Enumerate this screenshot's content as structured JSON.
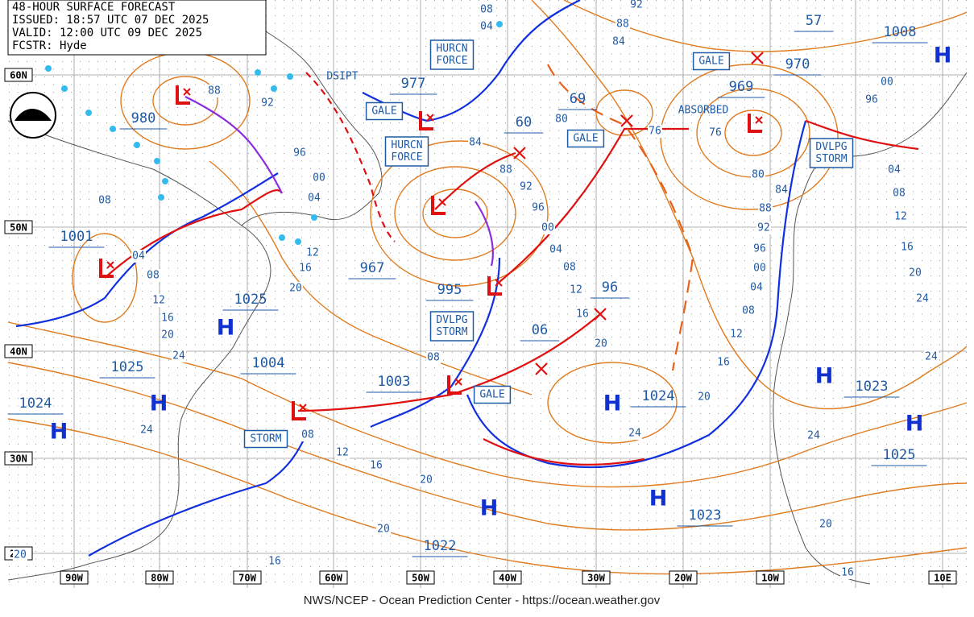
{
  "header": {
    "lines": [
      "48-HOUR SURFACE FORECAST",
      "ISSUED: 18:57 UTC 07 DEC 2025",
      "VALID:  12:00 UTC 09 DEC 2025",
      "FCSTR:  Hyde"
    ]
  },
  "longitudes": [
    "90W",
    "80W",
    "70W",
    "60W",
    "50W",
    "40W",
    "30W",
    "20W",
    "10W",
    "10E"
  ],
  "latitudes": [
    "60N",
    "50N",
    "40N",
    "30N",
    "20N"
  ],
  "pressure_labels": [
    "977",
    "980",
    "60",
    "69",
    "970",
    "57",
    "1008",
    "969",
    "1001",
    "967",
    "995",
    "96",
    "06",
    "1025",
    "1004",
    "1003",
    "1024",
    "1023",
    "1025",
    "1024",
    "1025",
    "1023",
    "1022"
  ],
  "highs": [
    "H",
    "H",
    "H",
    "H",
    "H",
    "H",
    "H",
    "H",
    "H"
  ],
  "warnings": [
    [
      "HURCN",
      "FORCE"
    ],
    [
      "GALE"
    ],
    [
      "HURCN",
      "FORCE"
    ],
    [
      "GALE"
    ],
    [
      "GALE"
    ],
    [
      "DVLPG",
      "STORM"
    ],
    [
      "DVLPG",
      "STORM"
    ],
    [
      "GALE"
    ],
    [
      "STORM"
    ]
  ],
  "notes": [
    "DSIPT",
    "ABSORBED"
  ],
  "isobar_labels": [
    "08",
    "04",
    "92",
    "88",
    "84",
    "88",
    "92",
    "96",
    "00",
    "04",
    "08",
    "80",
    "84",
    "88",
    "92",
    "96",
    "00",
    "04",
    "08",
    "12",
    "16",
    "20",
    "24",
    "20",
    "16",
    "12",
    "08",
    "04",
    "00",
    "96",
    "92",
    "88",
    "84",
    "80",
    "76",
    "76",
    "00",
    "96",
    "04",
    "08",
    "12",
    "16",
    "20",
    "24",
    "24",
    "20",
    "16",
    "12",
    "08",
    "04",
    "24",
    "24",
    "20",
    "16",
    "12",
    "08",
    "12",
    "16",
    "20",
    "20",
    "16",
    "20",
    "24",
    "20",
    "16",
    "08"
  ],
  "footer": "NWS/NCEP - Ocean Prediction Center - https://ocean.weather.gov"
}
